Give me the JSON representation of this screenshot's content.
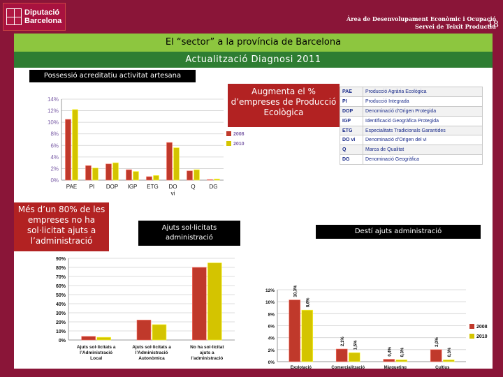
{
  "header": {
    "logo_line1": "Diputació",
    "logo_line2": "Barcelona",
    "dept_line1": "Àrea de Desenvolupament Econòmic i Ocupació",
    "dept_line2": "Servei de Teixit Productiu",
    "page_number": "18"
  },
  "title": "El “sector” a la província de Barcelona",
  "subtitle": "Actualització Diagnosi 2011",
  "section_label": "Possessió acreditatiu activitat artesana",
  "callout_eco": "Augmenta el % d’empreses de Producció Ecològica",
  "callout_help": "Més d’un 80% de les empreses no ha sol·licitat ajuts a l’administració",
  "label_ajuts": "Ajuts sol·licitats administració",
  "label_desti": "Destí ajuts administració",
  "acronyms": [
    {
      "code": "PAE",
      "desc": "Producció Agrària Ecològica"
    },
    {
      "code": "PI",
      "desc": "Producció Integrada"
    },
    {
      "code": "DOP",
      "desc": "Denominació d’Origen Protegida"
    },
    {
      "code": "IGP",
      "desc": "Identificació Geogràfica Protegida"
    },
    {
      "code": "ETG",
      "desc": "Especialitats Tradicionals Garantides"
    },
    {
      "code": "DO vi",
      "desc": "Denominació d’Origen del vi"
    },
    {
      "code": "Q",
      "desc": "Marca de Qualitat"
    },
    {
      "code": "DG",
      "desc": "Denominació Geogràfica"
    }
  ],
  "colors": {
    "s2008": "#c0392b",
    "s2010": "#d4c400"
  },
  "chart_data": [
    {
      "type": "bar",
      "categories": [
        "PAE",
        "PI",
        "DOP",
        "IGP",
        "ETG",
        "DO vi",
        "Q",
        "DG"
      ],
      "series": [
        {
          "name": "2008",
          "values": [
            10.5,
            2.5,
            2.8,
            1.8,
            0.6,
            6.5,
            1.6,
            0.1
          ]
        },
        {
          "name": "2010",
          "values": [
            12.2,
            2.1,
            3.0,
            1.5,
            0.8,
            5.6,
            1.8,
            0.2
          ]
        }
      ],
      "yticks": [
        "0%",
        "2%",
        "4%",
        "6%",
        "8%",
        "10%",
        "12%",
        "14%"
      ],
      "ylim": [
        0,
        14
      ],
      "legend": "right"
    },
    {
      "type": "bar",
      "categories": [
        "Ajuts sol·licitats a l’Administració Local",
        "Ajuts sol·licitats a l’Administració Autonòmica",
        "No ha sol·licitat ajuts a l’administració"
      ],
      "series": [
        {
          "name": "2008",
          "values": [
            4,
            22,
            80
          ]
        },
        {
          "name": "2010",
          "values": [
            3,
            17,
            85
          ]
        }
      ],
      "yticks": [
        "0%",
        "10%",
        "20%",
        "30%",
        "40%",
        "50%",
        "60%",
        "70%",
        "80%",
        "90%"
      ],
      "ylim": [
        0,
        90
      ],
      "legend": "none"
    },
    {
      "type": "bar",
      "categories": [
        "Explotació",
        "Comercialització",
        "Màrqueting",
        "Cultius"
      ],
      "series": [
        {
          "name": "2008",
          "values": [
            10.3,
            2.1,
            0.4,
            2.0
          ],
          "labels": [
            "10,3%",
            "2,1%",
            "0,4%",
            "2,0%"
          ]
        },
        {
          "name": "2010",
          "values": [
            8.6,
            1.5,
            0.3,
            0.3
          ],
          "labels": [
            "8,6%",
            "1,5%",
            "0,3%",
            "0,3%"
          ]
        }
      ],
      "yticks": [
        "0%",
        "2%",
        "4%",
        "6%",
        "8%",
        "10%",
        "12%"
      ],
      "ylim": [
        0,
        12
      ],
      "legend": "right"
    }
  ]
}
